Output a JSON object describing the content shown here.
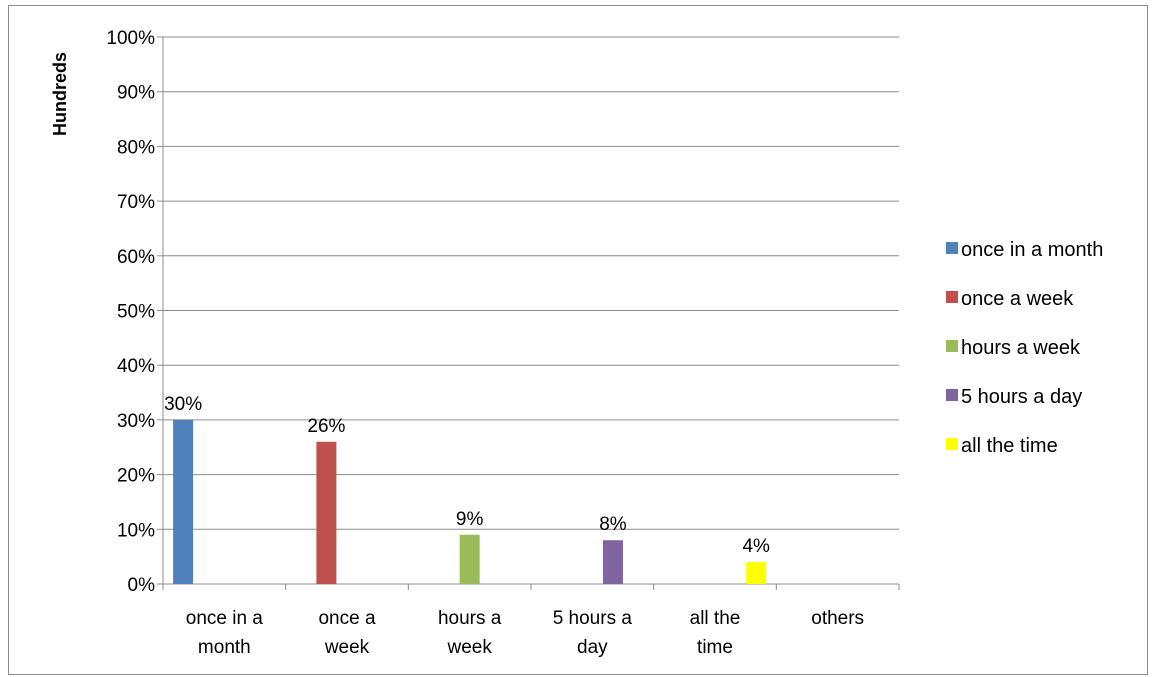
{
  "chart_data": {
    "type": "bar",
    "title": "",
    "xlabel": "",
    "ylabel": "Hundreds",
    "ylim": [
      0,
      100
    ],
    "y_ticks": [
      "0%",
      "10%",
      "20%",
      "30%",
      "40%",
      "50%",
      "60%",
      "70%",
      "80%",
      "90%",
      "100%"
    ],
    "grid": true,
    "legend_position": "right",
    "categories": [
      [
        "once in a",
        "month"
      ],
      [
        "once a",
        "week"
      ],
      [
        "hours a",
        "week"
      ],
      [
        "5 hours a",
        "day"
      ],
      [
        "all the",
        "time"
      ],
      [
        "others"
      ]
    ],
    "series": [
      {
        "name": "once in a month",
        "color": "#4F81BD",
        "category_index": 0,
        "value": 30,
        "label": "30%"
      },
      {
        "name": "once a week",
        "color": "#C0504D",
        "category_index": 1,
        "value": 26,
        "label": "26%"
      },
      {
        "name": "hours a week",
        "color": "#9BBB59",
        "category_index": 2,
        "value": 9,
        "label": "9%"
      },
      {
        "name": "5 hours a day",
        "color": "#8064A2",
        "category_index": 3,
        "value": 8,
        "label": "8%"
      },
      {
        "name": "all the time",
        "color": "#FFFF00",
        "category_index": 4,
        "value": 4,
        "label": "4%"
      }
    ]
  }
}
